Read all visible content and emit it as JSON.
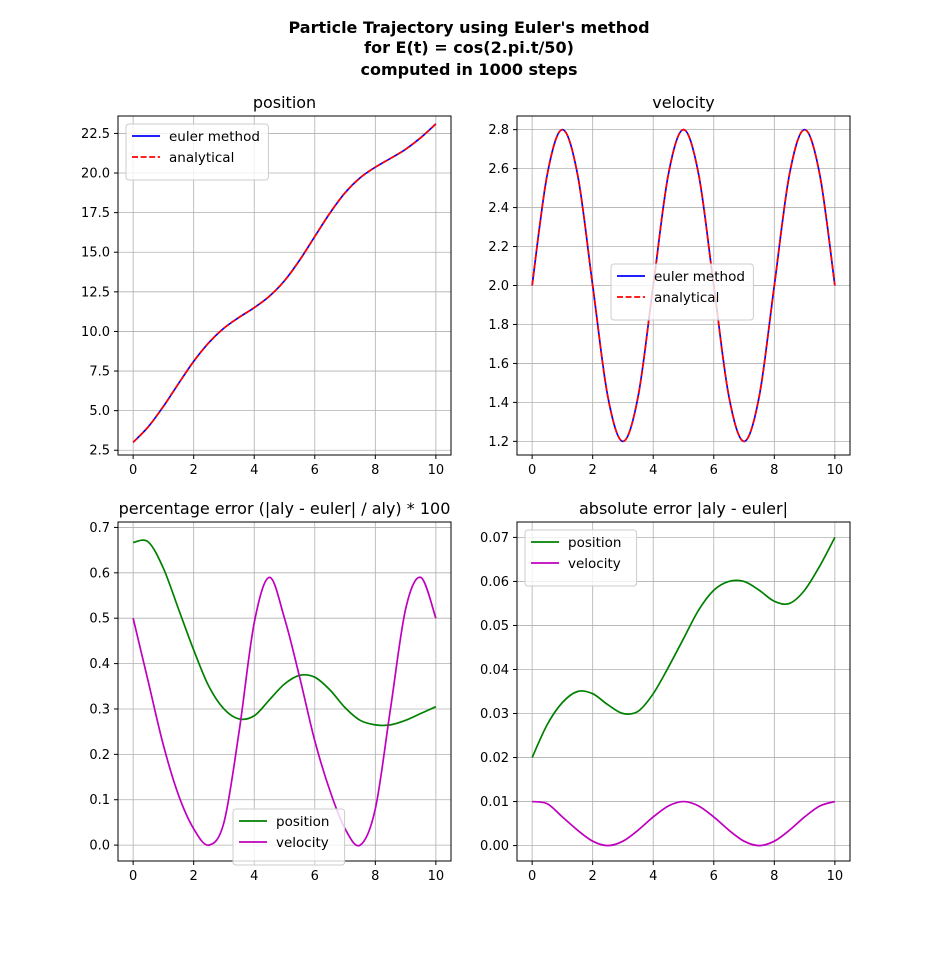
{
  "figure": {
    "title_lines": [
      "Particle Trajectory using Euler's method",
      "for E(t) = cos(2.pi.t/50)",
      "computed in 1000 steps"
    ]
  },
  "colors": {
    "euler": "#0000ff",
    "analytical": "#ff0000",
    "position": "#008000",
    "velocity": "#bf00bf",
    "grid": "#b0b0b0"
  },
  "chart_data": [
    {
      "type": "line",
      "title": "position",
      "xlim": [
        -0.5,
        10.5
      ],
      "ylim": [
        2.2,
        23.6
      ],
      "xticks": [
        0,
        2,
        4,
        6,
        8,
        10
      ],
      "xtick_labels": [
        "0",
        "2",
        "4",
        "6",
        "8",
        "10"
      ],
      "yticks": [
        2.5,
        5.0,
        7.5,
        10.0,
        12.5,
        15.0,
        17.5,
        20.0,
        22.5
      ],
      "ytick_labels": [
        "2.5",
        "5.0",
        "7.5",
        "10.0",
        "12.5",
        "15.0",
        "17.5",
        "20.0",
        "22.5"
      ],
      "grid": true,
      "legend": "upper-left",
      "x": [
        0,
        0.5,
        1,
        1.5,
        2,
        2.5,
        3,
        3.5,
        4,
        4.5,
        5,
        5.5,
        6,
        6.5,
        7,
        7.5,
        8,
        8.5,
        9,
        9.5,
        10
      ],
      "series": [
        {
          "name": "euler method",
          "style": "solid",
          "values": [
            3.0,
            3.98,
            5.27,
            6.71,
            8.11,
            9.29,
            10.21,
            10.89,
            11.5,
            12.22,
            13.2,
            14.5,
            15.99,
            17.47,
            18.75,
            19.7,
            20.37,
            20.92,
            21.5,
            22.23,
            23.1
          ]
        },
        {
          "name": "analytical",
          "style": "dashed",
          "values": [
            3.0,
            3.98,
            5.27,
            6.71,
            8.11,
            9.29,
            10.21,
            10.89,
            11.5,
            12.22,
            13.2,
            14.5,
            15.99,
            17.47,
            18.75,
            19.7,
            20.37,
            20.92,
            21.5,
            22.23,
            23.1
          ]
        }
      ]
    },
    {
      "type": "line",
      "title": "velocity",
      "xlim": [
        -0.5,
        10.5
      ],
      "ylim": [
        1.13,
        2.87
      ],
      "xticks": [
        0,
        2,
        4,
        6,
        8,
        10
      ],
      "xtick_labels": [
        "0",
        "2",
        "4",
        "6",
        "8",
        "10"
      ],
      "yticks": [
        1.2,
        1.4,
        1.6,
        1.8,
        2.0,
        2.2,
        2.4,
        2.6,
        2.8
      ],
      "ytick_labels": [
        "1.2",
        "1.4",
        "1.6",
        "1.8",
        "2.0",
        "2.2",
        "2.4",
        "2.6",
        "2.8"
      ],
      "grid": true,
      "legend": "center-right",
      "x": [
        0,
        0.5,
        1,
        1.5,
        2,
        2.5,
        3,
        3.5,
        4,
        4.5,
        5,
        5.5,
        6,
        6.5,
        7,
        7.5,
        8,
        8.5,
        9,
        9.5,
        10
      ],
      "series": [
        {
          "name": "euler method",
          "style": "solid",
          "values": [
            2.0,
            2.57,
            2.8,
            2.57,
            2.0,
            1.43,
            1.2,
            1.43,
            2.0,
            2.57,
            2.8,
            2.57,
            2.0,
            1.43,
            1.2,
            1.43,
            2.0,
            2.57,
            2.8,
            2.57,
            2.0
          ]
        },
        {
          "name": "analytical",
          "style": "dashed",
          "values": [
            2.0,
            2.57,
            2.8,
            2.57,
            2.0,
            1.43,
            1.2,
            1.43,
            2.0,
            2.57,
            2.8,
            2.57,
            2.0,
            1.43,
            1.2,
            1.43,
            2.0,
            2.57,
            2.8,
            2.57,
            2.0
          ]
        }
      ]
    },
    {
      "type": "line",
      "title": "percentage error (|aly - euler| / aly) * 100",
      "xlim": [
        -0.5,
        10.5
      ],
      "ylim": [
        -0.035,
        0.712
      ],
      "xticks": [
        0,
        2,
        4,
        6,
        8,
        10
      ],
      "xtick_labels": [
        "0",
        "2",
        "4",
        "6",
        "8",
        "10"
      ],
      "yticks": [
        0.0,
        0.1,
        0.2,
        0.3,
        0.4,
        0.5,
        0.6,
        0.7
      ],
      "ytick_labels": [
        "0.0",
        "0.1",
        "0.2",
        "0.3",
        "0.4",
        "0.5",
        "0.6",
        "0.7"
      ],
      "grid": true,
      "legend": "lower-center",
      "x": [
        0,
        0.5,
        1,
        1.5,
        2,
        2.5,
        3,
        3.5,
        4,
        4.5,
        5,
        5.5,
        6,
        6.5,
        7,
        7.5,
        8,
        8.5,
        9,
        9.5,
        10
      ],
      "series": [
        {
          "name": "position",
          "values": [
            0.667,
            0.668,
            0.61,
            0.52,
            0.43,
            0.35,
            0.3,
            0.278,
            0.285,
            0.32,
            0.355,
            0.374,
            0.37,
            0.342,
            0.303,
            0.275,
            0.265,
            0.265,
            0.275,
            0.29,
            0.305
          ]
        },
        {
          "name": "velocity",
          "values": [
            0.5,
            0.36,
            0.22,
            0.11,
            0.036,
            0.0,
            0.05,
            0.25,
            0.49,
            0.59,
            0.5,
            0.37,
            0.23,
            0.12,
            0.036,
            0.0,
            0.08,
            0.3,
            0.52,
            0.59,
            0.5
          ]
        }
      ]
    },
    {
      "type": "line",
      "title": "absolute error |aly - euler|",
      "xlim": [
        -0.5,
        10.5
      ],
      "ylim": [
        -0.0035,
        0.0735
      ],
      "xticks": [
        0,
        2,
        4,
        6,
        8,
        10
      ],
      "xtick_labels": [
        "0",
        "2",
        "4",
        "6",
        "8",
        "10"
      ],
      "yticks": [
        0.0,
        0.01,
        0.02,
        0.03,
        0.04,
        0.05,
        0.06,
        0.07
      ],
      "ytick_labels": [
        "0.00",
        "0.01",
        "0.02",
        "0.03",
        "0.04",
        "0.05",
        "0.06",
        "0.07"
      ],
      "grid": true,
      "legend": "upper-left",
      "x": [
        0,
        0.5,
        1,
        1.5,
        2,
        2.5,
        3,
        3.5,
        4,
        4.5,
        5,
        5.5,
        6,
        6.5,
        7,
        7.5,
        8,
        8.5,
        9,
        9.5,
        10
      ],
      "series": [
        {
          "name": "position",
          "values": [
            0.02,
            0.0275,
            0.0325,
            0.035,
            0.0345,
            0.032,
            0.03,
            0.0305,
            0.0345,
            0.0405,
            0.047,
            0.0535,
            0.058,
            0.06,
            0.06,
            0.058,
            0.0555,
            0.055,
            0.058,
            0.0635,
            0.07
          ]
        },
        {
          "name": "velocity",
          "values": [
            0.01,
            0.0095,
            0.0065,
            0.0035,
            0.001,
            0.0,
            0.001,
            0.0035,
            0.0065,
            0.009,
            0.01,
            0.009,
            0.0065,
            0.0035,
            0.001,
            0.0,
            0.001,
            0.0035,
            0.0065,
            0.009,
            0.01
          ]
        }
      ]
    }
  ]
}
